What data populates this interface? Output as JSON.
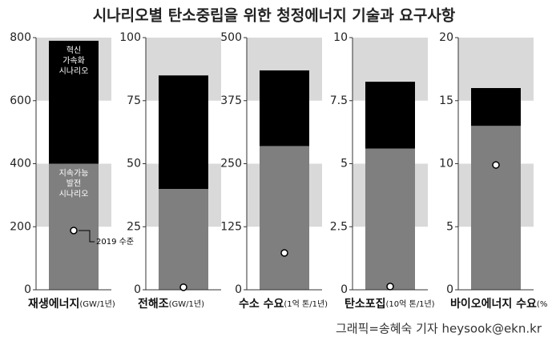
{
  "title": "시나리오별 탄소중립을 위한 청정에너지 기술과 요구사항",
  "credit": "그래픽=송혜숙 기자 heysook@ekn.kr",
  "chart_data": [
    {
      "type": "bar",
      "categories": [
        "재생에너지"
      ],
      "unit": "(GW/1년)",
      "ylim": [
        0,
        800
      ],
      "yticks": [
        0,
        200,
        400,
        600,
        800
      ],
      "series": [
        {
          "name": "지속가능 발전 시나리오",
          "color": "#7f7f7f",
          "values": [
            400
          ]
        },
        {
          "name": "혁신 가속화 시나리오",
          "color": "#000000",
          "values": [
            390
          ]
        }
      ],
      "point": {
        "name": "2019 수준",
        "values": [
          188
        ]
      }
    },
    {
      "type": "bar",
      "categories": [
        "전해조"
      ],
      "unit": "(GW/1년)",
      "ylim": [
        0,
        100
      ],
      "yticks": [
        0,
        25,
        50,
        75,
        100
      ],
      "series": [
        {
          "color": "#7f7f7f",
          "values": [
            40
          ]
        },
        {
          "color": "#000000",
          "values": [
            45
          ]
        }
      ],
      "point": {
        "values": [
          1
        ]
      }
    },
    {
      "type": "bar",
      "categories": [
        "수소 수요"
      ],
      "unit": "(1억 톤/1년)",
      "ylim": [
        0,
        500
      ],
      "yticks": [
        0,
        125,
        250,
        375,
        500
      ],
      "series": [
        {
          "color": "#7f7f7f",
          "values": [
            285
          ]
        },
        {
          "color": "#000000",
          "values": [
            150
          ]
        }
      ],
      "point": {
        "values": [
          73
        ]
      }
    },
    {
      "type": "bar",
      "categories": [
        "탄소포집"
      ],
      "unit": "(10억 톤/1년)",
      "ylim": [
        0,
        10
      ],
      "yticks": [
        0,
        2.5,
        5,
        7.5,
        10
      ],
      "series": [
        {
          "color": "#7f7f7f",
          "values": [
            5.6
          ]
        },
        {
          "color": "#000000",
          "values": [
            2.65
          ]
        }
      ],
      "point": {
        "values": [
          0.13
        ]
      }
    },
    {
      "type": "bar",
      "categories": [
        "바이오에너지 수요"
      ],
      "unit": "(%)",
      "ylim": [
        0,
        20
      ],
      "yticks": [
        0,
        5,
        10,
        15,
        20
      ],
      "series": [
        {
          "color": "#7f7f7f",
          "values": [
            13
          ]
        },
        {
          "color": "#000000",
          "values": [
            3
          ]
        }
      ],
      "point": {
        "values": [
          9.9
        ]
      }
    }
  ]
}
